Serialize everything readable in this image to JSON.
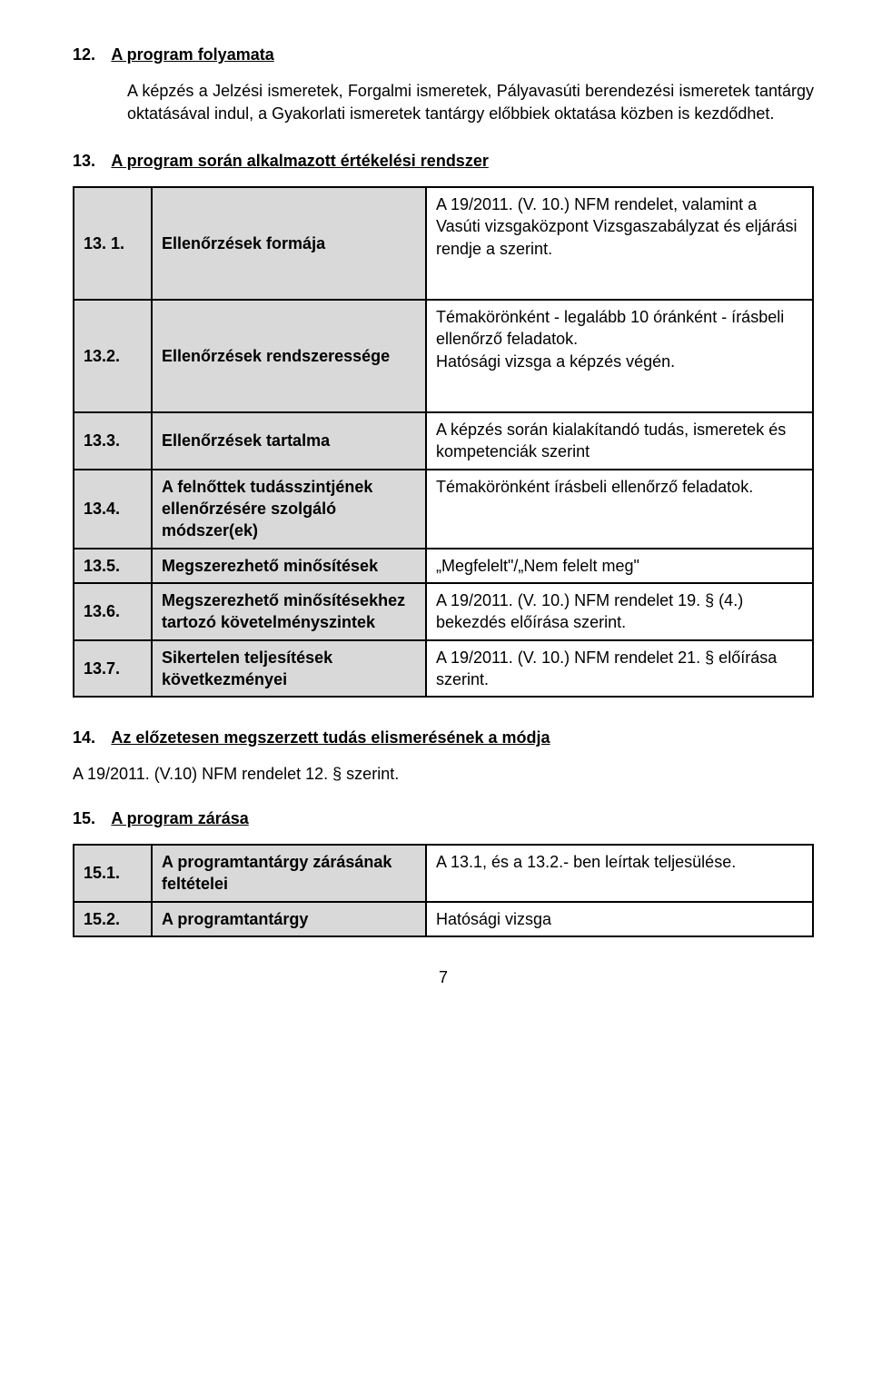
{
  "section12": {
    "num": "12.",
    "title": "A program folyamata",
    "para": "A képzés a Jelzési ismeretek, Forgalmi ismeretek, Pályavasúti berendezési ismeretek tantárgy oktatásával indul, a Gyakorlati ismeretek tantárgy előbbiek oktatása közben is kezdődhet."
  },
  "section13": {
    "num": "13.",
    "title": "A program során alkalmazott értékelési rendszer",
    "rows": [
      {
        "num": "13. 1.",
        "label": "Ellenőrzések formája",
        "value": "A 19/2011. (V. 10.) NFM rendelet, valamint a Vasúti vizsgaközpont Vizsgaszabályzat és eljárási rendje a szerint.",
        "tall": true
      },
      {
        "num": "13.2.",
        "label": "Ellenőrzések rendszeressége",
        "value": "Témakörönként - legalább 10 óránként - írásbeli ellenőrző feladatok.\nHatósági vizsga a képzés végén.",
        "tall": true
      },
      {
        "num": "13.3.",
        "label": "Ellenőrzések tartalma",
        "value": "A képzés során kialakítandó tudás, ismeretek és kompetenciák szerint"
      },
      {
        "num": "13.4.",
        "label": "A felnőttek tudásszintjének ellenőrzésére szolgáló módszer(ek)",
        "value": "Témakörönként írásbeli ellenőrző feladatok."
      },
      {
        "num": "13.5.",
        "label": "Megszerezhető minősítések",
        "value": "„Megfelelt\"/„Nem felelt meg\""
      },
      {
        "num": "13.6.",
        "label": "Megszerezhető minősítésekhez tartozó követelményszintek",
        "value": "A 19/2011. (V. 10.) NFM rendelet 19. § (4.) bekezdés előírása szerint."
      },
      {
        "num": "13.7.",
        "label": "Sikertelen teljesítések következményei",
        "value": "A 19/2011. (V. 10.) NFM rendelet 21. § előírása szerint."
      }
    ]
  },
  "section14": {
    "num": "14.",
    "title": "Az előzetesen megszerzett tudás elismerésének a módja",
    "line": "A 19/2011. (V.10) NFM rendelet 12. § szerint."
  },
  "section15": {
    "num": "15.",
    "title": "A program zárása",
    "rows": [
      {
        "num": "15.1.",
        "label": "A programtantárgy zárásának feltételei",
        "value": "A 13.1, és a 13.2.- ben leírtak teljesülése."
      },
      {
        "num": "15.2.",
        "label": "A programtantárgy",
        "value": "Hatósági vizsga"
      }
    ]
  },
  "pageNumber": "7"
}
